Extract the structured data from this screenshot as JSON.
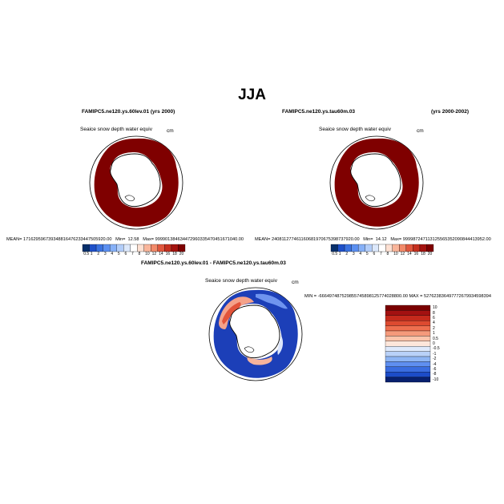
{
  "figure_title": "JJA",
  "panels": [
    {
      "title": "FAMIPC5.ne120.ys.60lev.01 (yrs 2000)",
      "variable": "Seaice snow depth water equiv",
      "units": "cm",
      "mean_label": "MEAN=",
      "mean": "171629596739348816476233447505920.00",
      "min_label": "Min=",
      "min": "12.58",
      "max_label": "Max=",
      "max": "999901384634472960335470451671040.00",
      "colorbar_ticks": [
        "0.5",
        "1",
        "2",
        "3",
        "4",
        "5",
        "6",
        "7",
        "8",
        "10",
        "12",
        "14",
        "16",
        "18",
        "20"
      ]
    },
    {
      "title": "FAMIPC5.ne120.ys.tau60m.03",
      "title_years": "(yrs 2000-2002)",
      "variable": "Seaice snow depth water equiv",
      "units": "cm",
      "mean_label": "MEAN=",
      "mean": "240811277461160681970675398737920.00",
      "min_label": "Min=",
      "min": "14.12",
      "max_label": "Max=",
      "max": "999987247113125565352090844413952.00",
      "colorbar_ticks": [
        "0.5",
        "1",
        "2",
        "3",
        "4",
        "5",
        "6",
        "7",
        "8",
        "10",
        "12",
        "14",
        "16",
        "18",
        "20"
      ]
    }
  ],
  "difference_panel": {
    "title": "FAMIPC5.ne120.ys.60lev.01 - FAMIPC5.ne120.ys.tau60m.03",
    "variable": "Seaice snow depth water equiv",
    "units": "cm",
    "minmax_text": "MIN = -666497487529855745898125774028800.00  MAX = 527623836497772679934598394",
    "colorbar_labels": [
      "10",
      "8",
      "6",
      "4",
      "2",
      "1",
      "0.5",
      "0",
      "-0.5",
      "-1",
      "-2",
      "-4",
      "-6",
      "-8",
      "-10"
    ]
  },
  "colors": {
    "seq_scale": [
      "#08306b",
      "#1e50c8",
      "#3a72e0",
      "#5b8ff0",
      "#86b0f7",
      "#b2cdf9",
      "#dce8fb",
      "#ffffff",
      "#fde0d2",
      "#f9b59a",
      "#f28a6a",
      "#e0573e",
      "#c5301f",
      "#a4130f",
      "#7f0000"
    ],
    "diff_scale": [
      "#7a0000",
      "#a31111",
      "#c52a1c",
      "#dd4a30",
      "#ee6f4f",
      "#f59a7b",
      "#fbc4ab",
      "#fde6da",
      "#dee9fb",
      "#b9d1f8",
      "#8eb5f3",
      "#5f8ff0",
      "#3a6de0",
      "#1c4cc8",
      "#08206e"
    ],
    "max_red": "#7f0000"
  }
}
